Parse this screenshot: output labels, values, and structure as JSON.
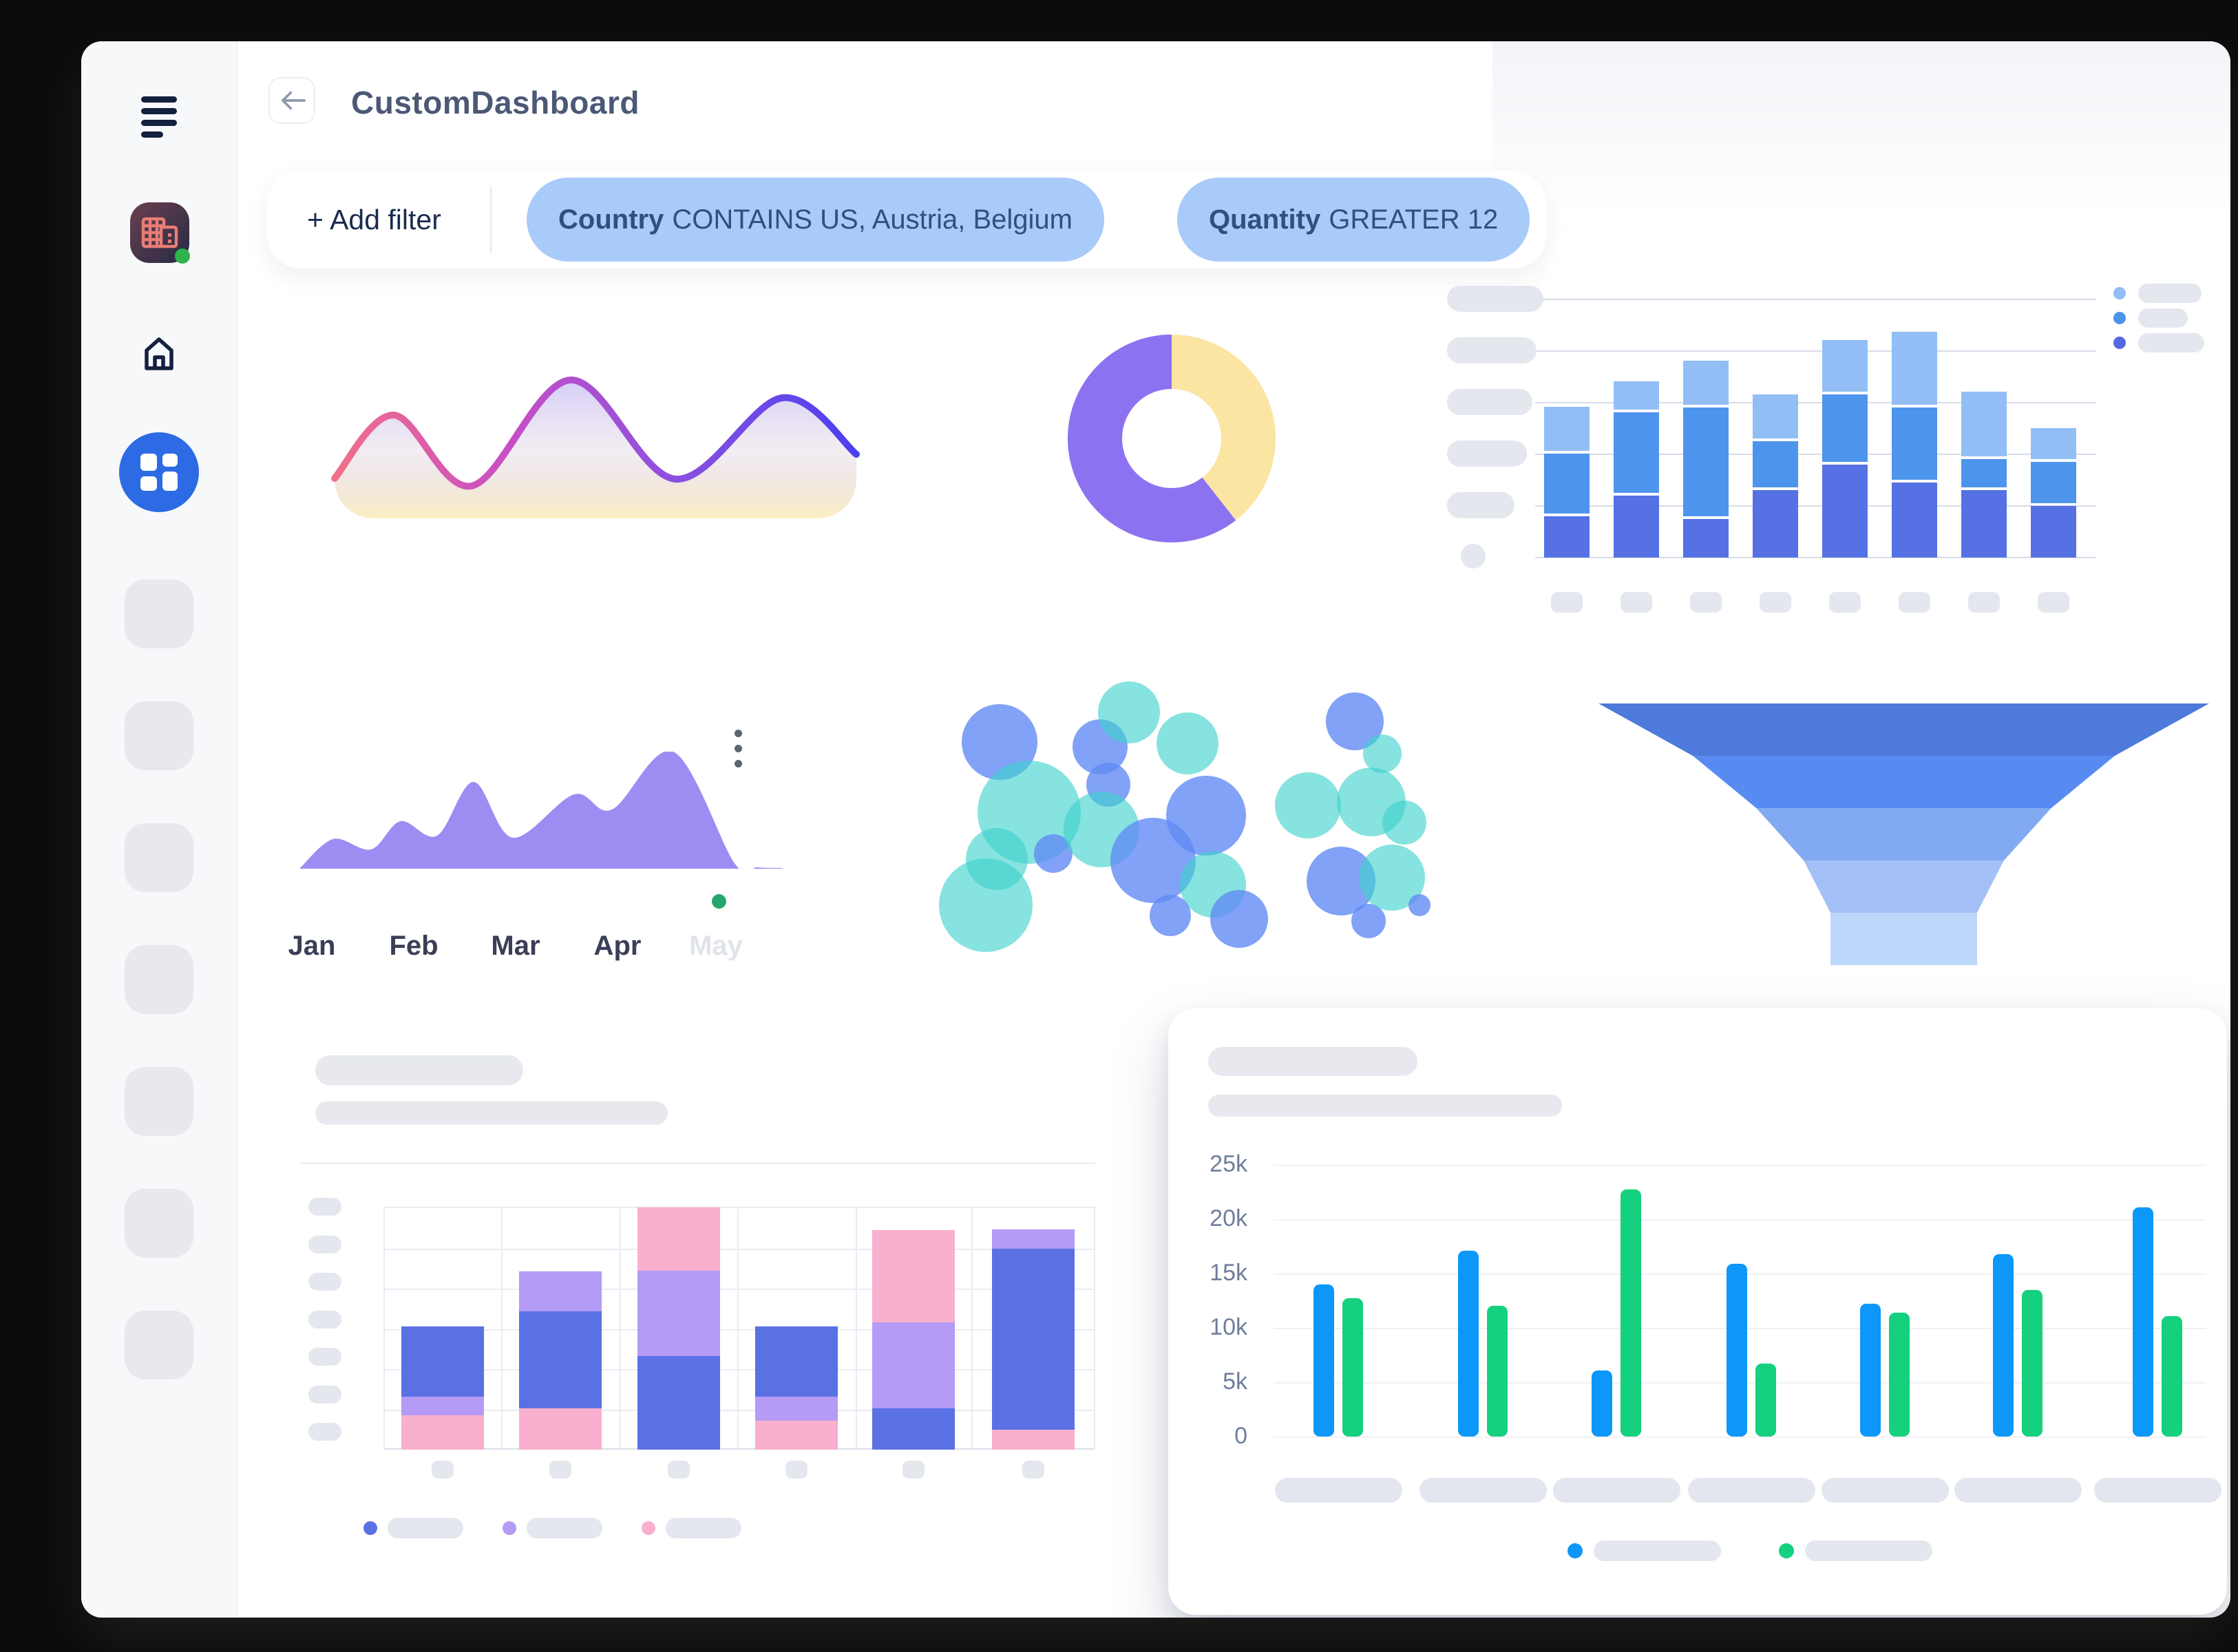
{
  "header": {
    "title": "CustomDashboard"
  },
  "filter": {
    "add_label": "+ Add filter",
    "chips": [
      {
        "field": "Country",
        "condition": "CONTAINS US, Austria, Belgium"
      },
      {
        "field": "Quantity",
        "condition": "GREATER 12"
      }
    ]
  },
  "sidebar": {
    "status_color": "#2eb44b",
    "active_color": "#2d6be4",
    "placeholder_count": 7,
    "icons": [
      "menu-icon",
      "company-logo",
      "home-icon",
      "dashboard-grid-icon"
    ]
  },
  "chart_data": {
    "wave": {
      "type": "line",
      "points": [
        [
          6,
          195
        ],
        [
          92,
          103
        ],
        [
          205,
          206
        ],
        [
          349,
          52
        ],
        [
          501,
          196
        ],
        [
          656,
          78
        ],
        [
          764,
          160
        ]
      ],
      "stroke_colors": [
        "#F27087",
        "#C94FC4",
        "#8950E0",
        "#4A3FEE"
      ],
      "fill_colors": [
        "rgba(148,128,240,0.42)",
        "rgba(214,196,214,0.30)",
        "rgba(251,238,189,0.90)"
      ]
    },
    "donut": {
      "type": "pie",
      "slices": [
        {
          "name": "slice-yellow",
          "pct": 39.4,
          "color": "#FBE5A3"
        },
        {
          "name": "slice-purple",
          "pct": 60.6,
          "color": "#8C72F0"
        }
      ]
    },
    "stacked_top": {
      "type": "bar",
      "colors": [
        "#5571E3",
        "#4D94EC",
        "#92BEF5"
      ],
      "bars": [
        [
          16,
          23,
          17
        ],
        [
          24,
          31,
          11
        ],
        [
          15,
          42,
          17
        ],
        [
          26,
          18,
          17
        ],
        [
          36,
          26,
          20
        ],
        [
          29,
          28,
          28
        ],
        [
          26,
          11,
          25
        ],
        [
          20,
          16,
          12
        ]
      ],
      "gridlines": 6,
      "y_pill_widths": [
        140,
        130,
        124,
        116,
        98,
        36
      ],
      "x_pill_count": 8,
      "legend_colors": [
        "#92BEF5",
        "#4D94EC",
        "#5468E0"
      ],
      "legend_pill_widths": [
        92,
        72,
        96
      ]
    },
    "area": {
      "type": "area",
      "months": [
        "Jan",
        "Feb",
        "Mar",
        "Apr",
        "May"
      ],
      "faded_month": "May",
      "marker_color": "#24a76c",
      "fill": "#9C8DF3",
      "points": [
        [
          0,
          169
        ],
        [
          48,
          127
        ],
        [
          103,
          142
        ],
        [
          146,
          101
        ],
        [
          199,
          122
        ],
        [
          252,
          44
        ],
        [
          309,
          125
        ],
        [
          398,
          62
        ],
        [
          453,
          84
        ],
        [
          542,
          0
        ],
        [
          631,
          162
        ],
        [
          664,
          168
        ],
        [
          700,
          169
        ]
      ]
    },
    "bubbles": {
      "type": "scatter",
      "palette": {
        "blue": "rgba(97,139,244,0.80)",
        "teal": "rgba(61,210,203,0.62)"
      },
      "points": [
        [
          72,
          88,
          55,
          "blue"
        ],
        [
          115,
          190,
          75,
          "teal"
        ],
        [
          52,
          325,
          68,
          "teal"
        ],
        [
          68,
          258,
          45,
          "teal"
        ],
        [
          150,
          250,
          28,
          "blue"
        ],
        [
          230,
          150,
          32,
          "blue"
        ],
        [
          220,
          215,
          55,
          "teal"
        ],
        [
          295,
          260,
          62,
          "blue"
        ],
        [
          218,
          95,
          40,
          "blue"
        ],
        [
          260,
          45,
          45,
          "teal"
        ],
        [
          345,
          90,
          45,
          "teal"
        ],
        [
          372,
          195,
          58,
          "blue"
        ],
        [
          382,
          295,
          48,
          "teal"
        ],
        [
          420,
          345,
          42,
          "blue"
        ],
        [
          320,
          340,
          30,
          "blue"
        ],
        [
          520,
          180,
          48,
          "teal"
        ],
        [
          588,
          58,
          42,
          "blue"
        ],
        [
          628,
          105,
          28,
          "teal"
        ],
        [
          612,
          175,
          50,
          "teal"
        ],
        [
          568,
          290,
          50,
          "blue"
        ],
        [
          608,
          348,
          25,
          "blue"
        ],
        [
          642,
          285,
          48,
          "teal"
        ],
        [
          660,
          205,
          32,
          "teal"
        ],
        [
          682,
          325,
          16,
          "blue"
        ]
      ]
    },
    "funnel": {
      "type": "funnel",
      "colors": [
        "#4D7ADB",
        "#588BF2",
        "#82AAF2",
        "#A2C0F6",
        "#BDD7FB"
      ],
      "widths_pct": [
        100,
        69.1,
        48.3,
        32.8,
        24.0,
        24.0
      ]
    },
    "stacked_bottom": {
      "type": "bar",
      "palette": {
        "blue": "#5A71E3",
        "purple": "#B49BF5",
        "pink": "#F9AFCE"
      },
      "bars": [
        [
          [
            "pink",
            14.3
          ],
          [
            "purple",
            7.6
          ],
          [
            "blue",
            28.8
          ]
        ],
        [
          [
            "pink",
            17.1
          ],
          [
            "blue",
            39.8
          ],
          [
            "purple",
            16.5
          ]
        ],
        [
          [
            "blue",
            38.4
          ],
          [
            "purple",
            35.3
          ],
          [
            "pink",
            26.0
          ]
        ],
        [
          [
            "pink",
            12.0
          ],
          [
            "purple",
            9.8
          ],
          [
            "blue",
            28.8
          ]
        ],
        [
          [
            "blue",
            17.1
          ],
          [
            "purple",
            35.3
          ],
          [
            "pink",
            38.1
          ]
        ],
        [
          [
            "pink",
            8.1
          ],
          [
            "blue",
            74.5
          ],
          [
            "purple",
            8.1
          ]
        ]
      ],
      "y_pill_count": 7,
      "legend_order": [
        "blue",
        "purple",
        "pink"
      ]
    },
    "grouped": {
      "type": "bar",
      "y_labels": [
        "25k",
        "20k",
        "15k",
        "10k",
        "5k",
        "0"
      ],
      "y_max_k": 25,
      "series": [
        {
          "name": "series-blue",
          "color": "#0D97F9"
        },
        {
          "name": "series-green",
          "color": "#15D07E"
        }
      ],
      "values_k": [
        [
          14.0,
          12.7
        ],
        [
          17.1,
          12.0
        ],
        [
          6.1,
          22.7
        ],
        [
          15.9,
          6.7
        ],
        [
          12.2,
          11.4
        ],
        [
          16.8,
          13.5
        ],
        [
          21.1,
          11.1
        ]
      ],
      "x_pill_count": 7
    }
  }
}
